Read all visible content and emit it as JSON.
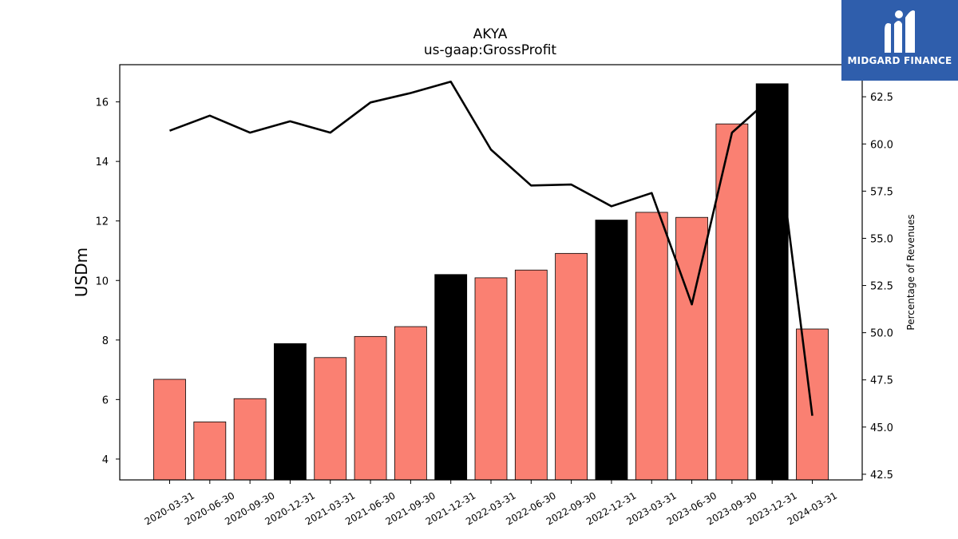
{
  "chart_data": {
    "type": "bar",
    "title": "AKYA",
    "subtitle": "us-gaap:GrossProfit",
    "ylabel": "USDm",
    "y2label": "Percentage of Revenues",
    "categories": [
      "2020-03-31",
      "2020-06-30",
      "2020-09-30",
      "2020-12-31",
      "2021-03-31",
      "2021-06-30",
      "2021-09-30",
      "2021-12-31",
      "2022-03-31",
      "2022-06-30",
      "2022-09-30",
      "2022-12-31",
      "2023-03-31",
      "2023-06-30",
      "2023-09-30",
      "2023-12-31",
      "2024-03-31"
    ],
    "series": [
      {
        "type": "bar",
        "axis": "left",
        "values": [
          6.68,
          5.25,
          6.03,
          7.88,
          7.41,
          8.12,
          8.45,
          10.2,
          10.09,
          10.35,
          10.91,
          12.03,
          12.29,
          12.12,
          15.26,
          16.61,
          8.37
        ],
        "colors": [
          "#fa8072",
          "#fa8072",
          "#fa8072",
          "#000000",
          "#fa8072",
          "#fa8072",
          "#fa8072",
          "#000000",
          "#fa8072",
          "#fa8072",
          "#fa8072",
          "#000000",
          "#fa8072",
          "#fa8072",
          "#fa8072",
          "#000000",
          "#fa8072"
        ]
      },
      {
        "type": "line",
        "axis": "right",
        "color": "#000000",
        "values": [
          60.7,
          61.5,
          60.6,
          61.2,
          60.6,
          62.2,
          62.7,
          63.3,
          59.7,
          57.8,
          57.85,
          56.7,
          57.4,
          51.5,
          60.6,
          62.5,
          45.6
        ]
      }
    ],
    "ylim": [
      3.3,
      17.25
    ],
    "y2lim": [
      42.2,
      64.2
    ],
    "yticks": [
      "4",
      "6",
      "8",
      "10",
      "12",
      "14",
      "16"
    ],
    "y2ticks": [
      "42.5",
      "45.0",
      "47.5",
      "50.0",
      "52.5",
      "55.0",
      "57.5",
      "60.0",
      "62.5"
    ],
    "grid": false
  },
  "logo": {
    "text": "MIDGARD FINANCE",
    "background": "#2f5eac"
  }
}
